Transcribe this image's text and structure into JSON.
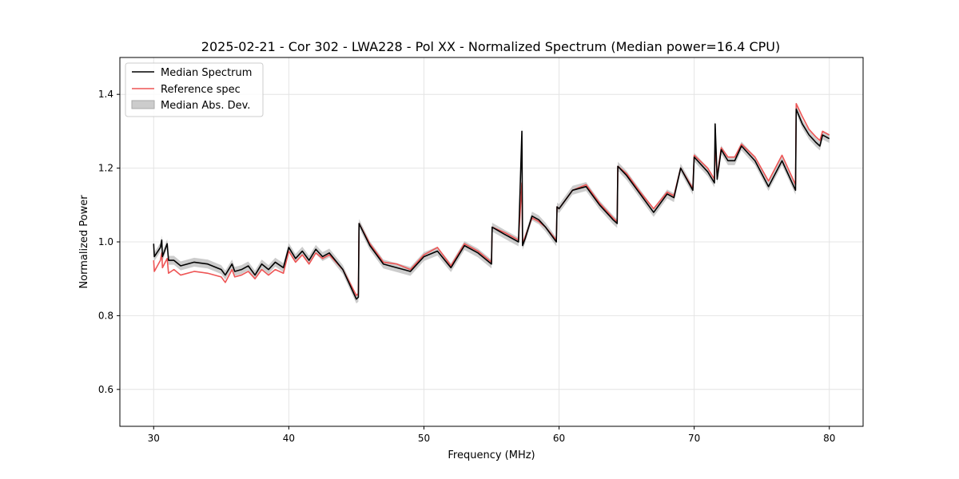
{
  "chart_data": {
    "type": "line",
    "title": "2025-02-21 - Cor 302 - LWA228 - Pol XX - Normalized Spectrum (Median power=16.4 CPU)",
    "xlabel": "Frequency (MHz)",
    "ylabel": "Normalized Power",
    "xlim": [
      27.5,
      82.5
    ],
    "ylim": [
      0.5,
      1.5
    ],
    "xticks": [
      30,
      40,
      50,
      60,
      70,
      80
    ],
    "yticks": [
      0.6,
      0.8,
      1.0,
      1.2,
      1.4
    ],
    "xtick_labels": [
      "30",
      "40",
      "50",
      "60",
      "70",
      "80"
    ],
    "ytick_labels": [
      "0.6",
      "0.8",
      "1.0",
      "1.2",
      "1.4"
    ],
    "grid": true,
    "legend_position": "top-left",
    "legend": [
      "Median Spectrum",
      "Reference spec",
      "Median Abs. Dev."
    ],
    "series": [
      {
        "name": "Median Spectrum",
        "color": "#000000",
        "x": [
          30.0,
          30.05,
          30.5,
          30.6,
          30.65,
          31.0,
          31.1,
          31.5,
          32.0,
          33.0,
          34.0,
          35.0,
          35.3,
          35.8,
          36.0,
          36.5,
          37.0,
          37.5,
          38.0,
          38.5,
          39.0,
          39.6,
          40.0,
          40.5,
          41.0,
          41.5,
          42.0,
          42.5,
          43.0,
          44.0,
          45.0,
          45.15,
          45.2,
          46.0,
          47.0,
          48.0,
          49.0,
          50.0,
          51.0,
          52.0,
          53.0,
          54.0,
          55.0,
          55.05,
          56.0,
          57.0,
          57.25,
          57.3,
          57.5,
          58.0,
          58.5,
          59.0,
          59.8,
          59.85,
          60.0,
          61.0,
          62.0,
          63.0,
          64.0,
          64.3,
          64.35,
          65.0,
          66.0,
          67.0,
          68.0,
          68.5,
          69.0,
          69.9,
          70.0,
          71.0,
          71.5,
          71.55,
          71.7,
          72.0,
          72.5,
          73.0,
          73.5,
          74.5,
          75.5,
          76.5,
          77.5,
          77.55,
          78.0,
          78.5,
          79.0,
          79.3,
          79.5,
          80.0
        ],
        "values": [
          0.995,
          0.96,
          0.985,
          1.005,
          0.96,
          0.995,
          0.95,
          0.95,
          0.935,
          0.945,
          0.94,
          0.925,
          0.91,
          0.94,
          0.92,
          0.925,
          0.935,
          0.91,
          0.94,
          0.925,
          0.945,
          0.93,
          0.985,
          0.955,
          0.975,
          0.95,
          0.98,
          0.96,
          0.97,
          0.925,
          0.845,
          0.85,
          1.05,
          0.99,
          0.94,
          0.93,
          0.92,
          0.96,
          0.975,
          0.93,
          0.99,
          0.97,
          0.94,
          1.04,
          1.02,
          1.0,
          1.3,
          0.99,
          1.01,
          1.07,
          1.06,
          1.04,
          1.0,
          1.095,
          1.09,
          1.14,
          1.15,
          1.1,
          1.06,
          1.05,
          1.205,
          1.18,
          1.13,
          1.08,
          1.13,
          1.12,
          1.2,
          1.14,
          1.23,
          1.19,
          1.16,
          1.32,
          1.17,
          1.25,
          1.22,
          1.22,
          1.26,
          1.22,
          1.15,
          1.22,
          1.14,
          1.36,
          1.32,
          1.29,
          1.27,
          1.26,
          1.29,
          1.28
        ]
      },
      {
        "name": "Reference spec",
        "color": "#ee5555",
        "x": [
          30.0,
          30.05,
          30.5,
          30.6,
          30.65,
          31.0,
          31.1,
          31.5,
          32.0,
          33.0,
          34.0,
          35.0,
          35.3,
          35.8,
          36.0,
          36.5,
          37.0,
          37.5,
          38.0,
          38.5,
          39.0,
          39.6,
          40.0,
          40.5,
          41.0,
          41.5,
          42.0,
          42.5,
          43.0,
          44.0,
          45.0,
          45.15,
          45.2,
          46.0,
          47.0,
          48.0,
          49.0,
          50.0,
          51.0,
          52.0,
          53.0,
          54.0,
          55.0,
          55.05,
          56.0,
          57.0,
          57.25,
          57.3,
          57.5,
          58.0,
          58.5,
          59.0,
          59.8,
          59.85,
          60.0,
          61.0,
          62.0,
          63.0,
          64.0,
          64.3,
          64.35,
          65.0,
          66.0,
          67.0,
          68.0,
          68.5,
          69.0,
          69.9,
          70.0,
          71.0,
          71.5,
          71.55,
          71.7,
          72.0,
          72.5,
          73.0,
          73.5,
          74.5,
          75.5,
          76.5,
          77.5,
          77.55,
          78.0,
          78.5,
          79.0,
          79.3,
          79.5,
          80.0
        ],
        "values": [
          0.95,
          0.92,
          0.95,
          0.97,
          0.93,
          0.955,
          0.915,
          0.925,
          0.91,
          0.92,
          0.915,
          0.905,
          0.89,
          0.925,
          0.905,
          0.91,
          0.92,
          0.9,
          0.925,
          0.91,
          0.925,
          0.915,
          0.975,
          0.945,
          0.965,
          0.94,
          0.97,
          0.955,
          0.965,
          0.925,
          0.855,
          0.86,
          1.05,
          0.995,
          0.945,
          0.94,
          0.925,
          0.965,
          0.985,
          0.935,
          0.995,
          0.975,
          0.945,
          1.04,
          1.025,
          1.005,
          1.16,
          0.995,
          1.015,
          1.065,
          1.055,
          1.04,
          1.005,
          1.095,
          1.09,
          1.14,
          1.155,
          1.105,
          1.065,
          1.055,
          1.205,
          1.185,
          1.135,
          1.09,
          1.135,
          1.125,
          1.2,
          1.145,
          1.235,
          1.2,
          1.17,
          1.26,
          1.18,
          1.255,
          1.23,
          1.23,
          1.265,
          1.23,
          1.165,
          1.235,
          1.155,
          1.375,
          1.34,
          1.305,
          1.285,
          1.275,
          1.3,
          1.29
        ]
      }
    ],
    "band": {
      "name": "Median Abs. Dev.",
      "color": "#bbbbbb",
      "of_series": "Median Spectrum",
      "half_width": 0.012
    }
  }
}
